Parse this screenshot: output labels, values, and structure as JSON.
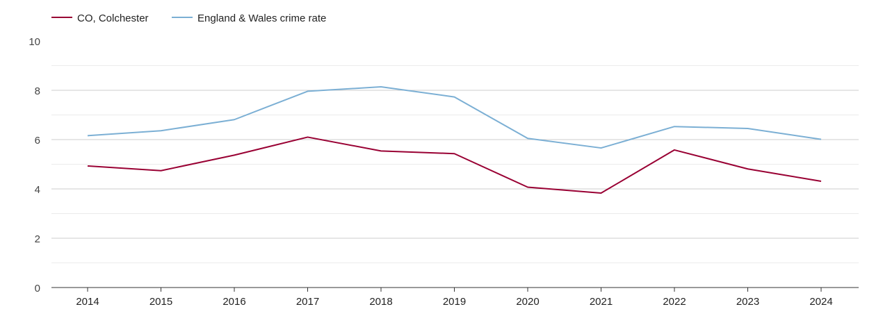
{
  "chart_data": {
    "type": "line",
    "x": [
      "2014",
      "2015",
      "2016",
      "2017",
      "2018",
      "2019",
      "2020",
      "2021",
      "2022",
      "2023",
      "2024"
    ],
    "series": [
      {
        "name": "CO, Colchester",
        "color": "#990033",
        "values": [
          4.93,
          4.74,
          5.37,
          6.1,
          5.54,
          5.43,
          4.07,
          3.83,
          5.58,
          4.81,
          4.31
        ]
      },
      {
        "name": "England & Wales crime rate",
        "color": "#7bafd4",
        "values": [
          6.16,
          6.36,
          6.81,
          7.96,
          8.14,
          7.73,
          6.05,
          5.66,
          6.53,
          6.45,
          6.01
        ]
      }
    ],
    "ylim": [
      0,
      10
    ],
    "yticks": [
      0,
      2,
      4,
      6,
      8,
      10
    ],
    "title": "",
    "xlabel": "",
    "ylabel": "",
    "grid": true,
    "legend_position": "top-left"
  }
}
